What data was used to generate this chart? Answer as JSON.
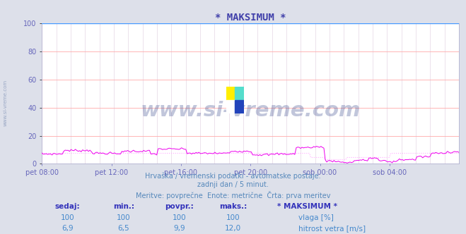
{
  "title": "* MAKSIMUM *",
  "title_color": "#4040aa",
  "bg_color": "#dde0ea",
  "plot_bg_color": "#ffffff",
  "grid_color_h": "#ffaaaa",
  "grid_color_v": "#ddccdd",
  "ylim": [
    0,
    100
  ],
  "yticks": [
    0,
    20,
    40,
    60,
    80,
    100
  ],
  "tick_label_color": "#6666bb",
  "xtick_labels": [
    "pet 08:00",
    "pet 12:00",
    "pet 16:00",
    "pet 20:00",
    "sob 00:00",
    "sob 04:00"
  ],
  "n_points": 288,
  "humidity_color": "#4499ff",
  "wind_color": "#ee00ee",
  "wind_avg_color": "#ffaaff",
  "watermark_text": "www.si-vreme.com",
  "watermark_color": "#334488",
  "watermark_alpha": 0.3,
  "subtitle1": "Hrvaška / vremenski podatki - avtomatske postaje.",
  "subtitle2": "zadnji dan / 5 minut.",
  "subtitle3": "Meritve: povprečne  Enote: metrične  Črta: prva meritev",
  "subtitle_color": "#5588bb",
  "table_header_color": "#3333bb",
  "table_value_color": "#4488cc",
  "table_cols": [
    "sedaj:",
    "min.:",
    "povpr.:",
    "maks.:"
  ],
  "row1_label": "vlaga [%]",
  "row1_color": "#44bbff",
  "row1_values": [
    "100",
    "100",
    "100",
    "100"
  ],
  "row2_label": "hitrost vetra [m/s]",
  "row2_color": "#ff00ff",
  "row2_values": [
    "6,9",
    "6,5",
    "9,9",
    "12,0"
  ],
  "legend_title": "* MAKSIMUM *",
  "side_text": "www.si-vreme.com"
}
